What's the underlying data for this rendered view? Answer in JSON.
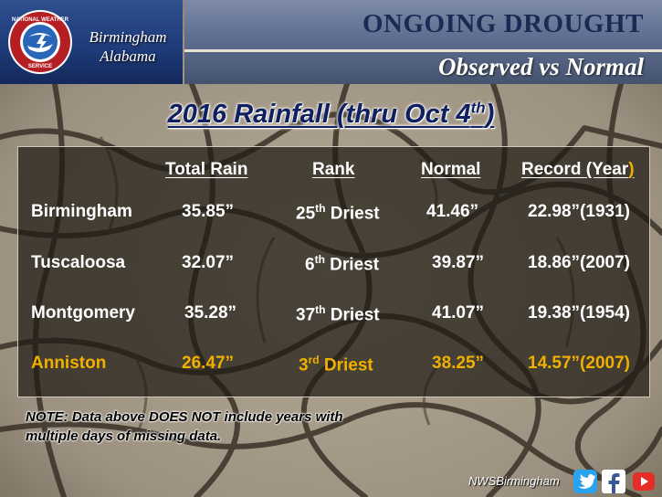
{
  "header": {
    "logo_text": "NATIONAL WEATHER SERVICE",
    "office_line1": "Birmingham",
    "office_line2": "Alabama",
    "title": "ONGOING DROUGHT",
    "subtitle": "Observed vs Normal"
  },
  "main_title": {
    "text": "2016 Rainfall (thru Oct 4",
    "sup": "th",
    "close": ")"
  },
  "table": {
    "headers": {
      "total": "Total Rain",
      "rank": "Rank",
      "normal": "Normal",
      "record": "Record (Year",
      "record_close": ")"
    },
    "rows": [
      {
        "city": "Birmingham",
        "total": "35.85”",
        "rank_num": "25",
        "rank_sup": "th",
        "rank_text": " Driest",
        "normal": "41.46”",
        "record": "22.98”(1931)"
      },
      {
        "city": "Tuscaloosa",
        "total": "32.07”",
        "rank_num": "6",
        "rank_sup": "th",
        "rank_text": " Driest",
        "normal": "39.87”",
        "record": "18.86”(2007)"
      },
      {
        "city": "Montgomery",
        "total": "35.28”",
        "rank_num": "37",
        "rank_sup": "th",
        "rank_text": " Driest",
        "normal": "41.07”",
        "record": "19.38”(1954)"
      },
      {
        "city": "Anniston",
        "total": "26.47”",
        "rank_num": "3",
        "rank_sup": "rd",
        "rank_text": " Driest",
        "normal": "38.25”",
        "record": "14.57”(2007)"
      }
    ]
  },
  "note": {
    "line1": "NOTE: Data above DOES NOT include years with",
    "line2": "multiple days of missing data."
  },
  "footer": {
    "handle": "NWSBirmingham",
    "icons": [
      "twitter-icon",
      "facebook-icon",
      "youtube-icon"
    ]
  },
  "colors": {
    "header_blue": "#1e3a78",
    "title_navy": "#0f2060",
    "highlight_gold": "#f0b000"
  }
}
